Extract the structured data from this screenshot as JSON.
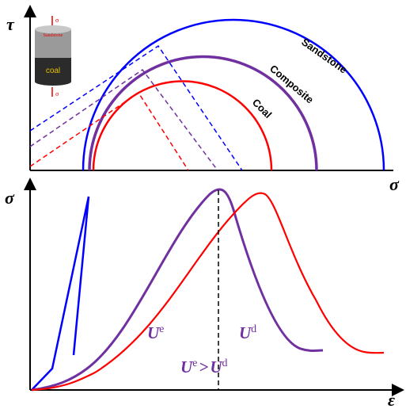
{
  "top_panel": {
    "y_axis_label": "τ",
    "x_axis_label": "σ",
    "circle_labels": [
      "Sandstone",
      "Composite",
      "Coal"
    ],
    "icon": {
      "top_load": "σ",
      "upper_layer": "Sandstone",
      "lower_layer": "coal",
      "bottom_load": "σ"
    }
  },
  "bottom_panel": {
    "y_axis_label": "σ",
    "x_axis_label": "ε",
    "elastic_energy": {
      "base": "U",
      "sup": "e"
    },
    "dissipated_energy": {
      "base": "U",
      "sup": "d"
    },
    "relation": {
      "left_base": "U",
      "left_sup": "e",
      "operator": ">",
      "right_base": "U",
      "right_sup": "d"
    }
  }
}
